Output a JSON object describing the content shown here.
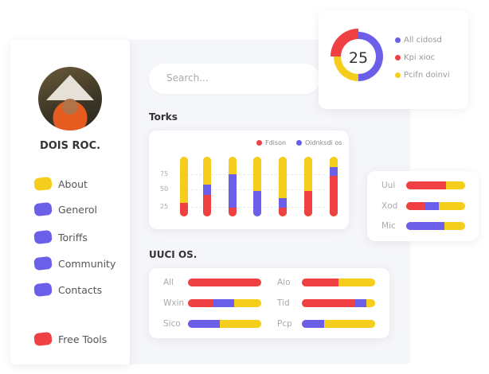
{
  "colors": {
    "red": "#ef4044",
    "purple": "#6b5ee8",
    "yellow": "#f5ce1d"
  },
  "user": {
    "name": "DOIS ROC."
  },
  "sidebar": {
    "items": [
      {
        "label": "About",
        "icon": "yellow-blob-icon",
        "color": "#f5ce1d"
      },
      {
        "label": "Generol",
        "icon": "purple-blob-icon",
        "color": "#6b5ee8"
      },
      {
        "label": "Toriffs",
        "icon": "purple-blob-icon",
        "color": "#6b5ee8"
      },
      {
        "label": "Community",
        "icon": "purple-blob-icon",
        "color": "#6b5ee8"
      },
      {
        "label": "Contacts",
        "icon": "purple-blob-icon",
        "color": "#6b5ee8"
      },
      {
        "label": "Free Tools",
        "icon": "red-blob-icon",
        "color": "#ef4044"
      }
    ]
  },
  "search": {
    "placeholder": "Search..."
  },
  "donut": {
    "value": "25",
    "legend": [
      {
        "label": "All cidosd",
        "color": "#6b5ee8"
      },
      {
        "label": "Kpi xioc",
        "color": "#ef4044"
      },
      {
        "label": "Pcifn doinvi",
        "color": "#f5ce1d"
      }
    ],
    "segments": [
      {
        "color": "#6b5ee8",
        "percent": 50
      },
      {
        "color": "#f5ce1d",
        "percent": 25
      },
      {
        "color": "#ef4044",
        "percent": 25
      }
    ]
  },
  "chart_data": [
    {
      "type": "bar",
      "title": "Torks",
      "stacked": true,
      "yticks": [
        "75",
        "50",
        "25"
      ],
      "series": [
        {
          "name": "Fdison",
          "color": "#ef4044",
          "values": [
            23,
            36,
            15,
            0,
            15,
            43,
            68
          ]
        },
        {
          "name": "Oidnksdi os",
          "color": "#6b5ee8",
          "values": [
            0,
            17,
            56,
            43,
            16,
            0,
            15
          ]
        },
        {
          "color": "#f5ce1d",
          "values": [
            77,
            47,
            29,
            57,
            69,
            57,
            17
          ]
        }
      ],
      "grid": true,
      "legend": "top-right"
    },
    {
      "type": "bar",
      "orientation": "horizontal",
      "stacked": true,
      "categories": [
        "Uui",
        "Xod",
        "Mic"
      ],
      "series": [
        {
          "color": "#ef4044",
          "values": [
            67,
            33,
            0
          ]
        },
        {
          "color": "#6b5ee8",
          "values": [
            0,
            22,
            65
          ]
        },
        {
          "color": "#f5ce1d",
          "values": [
            33,
            45,
            35
          ]
        }
      ]
    },
    {
      "type": "bar",
      "orientation": "horizontal",
      "stacked": true,
      "title": "UUCI OS.",
      "categories": [
        "All",
        "Wxin",
        "Sico",
        "Aio",
        "Tid",
        "Pcp"
      ],
      "series": [
        {
          "color": "#ef4044",
          "values": [
            100,
            35,
            0,
            50,
            73,
            0
          ]
        },
        {
          "color": "#6b5ee8",
          "values": [
            0,
            28,
            43,
            0,
            15,
            30
          ]
        },
        {
          "color": "#f5ce1d",
          "values": [
            0,
            37,
            57,
            50,
            12,
            70
          ]
        }
      ]
    }
  ]
}
